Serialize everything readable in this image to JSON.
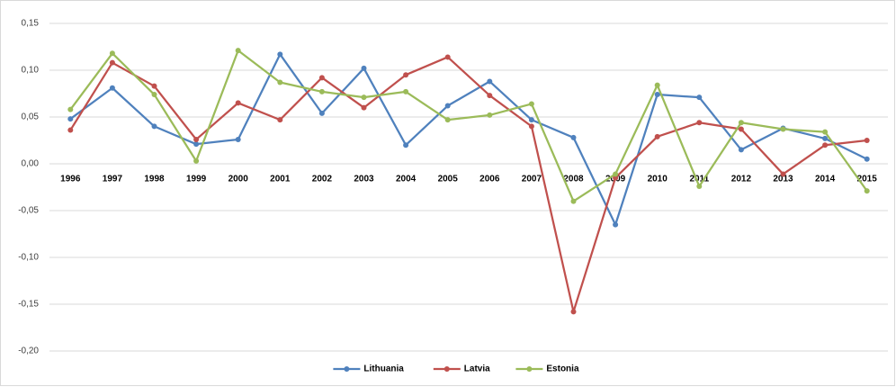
{
  "chart_data": {
    "type": "line",
    "categories": [
      "1996",
      "1997",
      "1998",
      "1999",
      "2000",
      "2001",
      "2002",
      "2003",
      "2004",
      "2005",
      "2006",
      "2007",
      "2008",
      "2009",
      "2010",
      "2011",
      "2012",
      "2013",
      "2014",
      "2015"
    ],
    "series": [
      {
        "name": "Lithuania",
        "color": "#4f81bd",
        "values": [
          0.048,
          0.081,
          0.04,
          0.021,
          0.026,
          0.117,
          0.054,
          0.102,
          0.02,
          0.062,
          0.088,
          0.047,
          0.028,
          -0.065,
          0.074,
          0.071,
          0.015,
          0.038,
          0.027,
          0.005
        ]
      },
      {
        "name": "Latvia",
        "color": "#c0504d",
        "values": [
          0.036,
          0.108,
          0.083,
          0.026,
          0.065,
          0.047,
          0.092,
          0.06,
          0.095,
          0.114,
          0.073,
          0.04,
          -0.158,
          -0.015,
          0.029,
          0.044,
          0.037,
          -0.011,
          0.02,
          0.025
        ]
      },
      {
        "name": "Estonia",
        "color": "#9bbb59",
        "values": [
          0.058,
          0.118,
          0.074,
          0.003,
          0.121,
          0.087,
          0.077,
          0.071,
          0.077,
          0.047,
          0.052,
          0.064,
          -0.04,
          -0.011,
          0.084,
          -0.024,
          0.044,
          0.037,
          0.034,
          -0.029
        ]
      }
    ],
    "ylim": [
      -0.2,
      0.15
    ],
    "yticks": [
      {
        "value": -0.2,
        "label": "-0,20"
      },
      {
        "value": -0.15,
        "label": "-0,15"
      },
      {
        "value": -0.1,
        "label": "-0,10"
      },
      {
        "value": -0.05,
        "label": "-0,05"
      },
      {
        "value": 0,
        "label": "0,00"
      },
      {
        "value": 0.05,
        "label": "0,05"
      },
      {
        "value": 0.1,
        "label": "0,10"
      },
      {
        "value": 0.15,
        "label": "0,15"
      }
    ],
    "grid": true,
    "legend": "bottom"
  }
}
